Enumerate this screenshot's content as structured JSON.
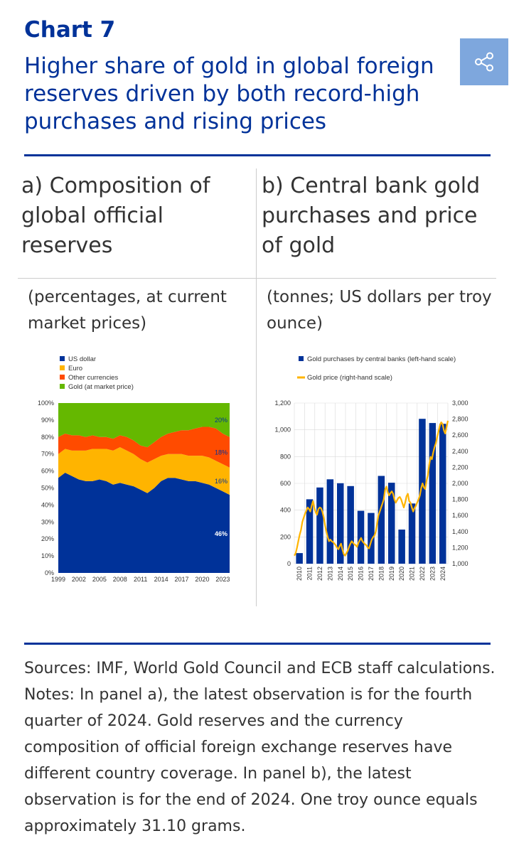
{
  "header": {
    "chart_number": "Chart 7",
    "title": "Higher share of gold in global foreign reserves driven by both record-high purchases and rising prices"
  },
  "share_icon": "share-icon",
  "panels": {
    "a": {
      "title": "a) Composition of global official reserves",
      "units": "(percentages, at current market prices)"
    },
    "b": {
      "title": "b) Central bank gold purchases and price of gold",
      "units": "(tonnes; US dollars per troy ounce)"
    }
  },
  "notes": {
    "sources": "Sources: IMF, World Gold Council and ECB staff calculations.",
    "notes": "Notes: In panel a), the latest observation is for the fourth quarter of 2024. Gold reserves and the currency composition of official foreign exchange reserves have different country coverage. In panel b), the latest observation is for the end of 2024. One troy ounce equals approximately 31.10 grams."
  },
  "colors": {
    "brand": "#003299",
    "usd": "#003299",
    "euro": "#ffb400",
    "other": "#ff4b00",
    "gold": "#65b800",
    "gold_price": "#ffb400",
    "share_btn": "#7ea7dd"
  },
  "chart_data": [
    {
      "id": "a",
      "type": "area",
      "stacked": true,
      "x": [
        1999,
        2000,
        2001,
        2002,
        2003,
        2004,
        2005,
        2006,
        2007,
        2008,
        2009,
        2010,
        2011,
        2012,
        2013,
        2014,
        2015,
        2016,
        2017,
        2018,
        2019,
        2020,
        2021,
        2022,
        2023,
        2024
      ],
      "series": [
        {
          "name": "US dollar",
          "values": [
            56,
            59,
            57,
            55,
            54,
            54,
            55,
            54,
            52,
            53,
            52,
            51,
            49,
            47,
            50,
            54,
            56,
            56,
            55,
            54,
            54,
            53,
            52,
            50,
            48,
            46
          ]
        },
        {
          "name": "Euro",
          "values": [
            14,
            14,
            15,
            17,
            18,
            19,
            18,
            19,
            20,
            21,
            20,
            19,
            18,
            18,
            17,
            15,
            14,
            14,
            15,
            15,
            15,
            16,
            16,
            16,
            16,
            16
          ]
        },
        {
          "name": "Other currencies",
          "values": [
            10,
            9,
            9,
            9,
            8,
            8,
            7,
            7,
            7,
            7,
            8,
            8,
            8,
            9,
            10,
            11,
            12,
            13,
            14,
            15,
            16,
            17,
            18,
            19,
            18,
            18
          ]
        },
        {
          "name": "Gold (at market price)",
          "values": [
            20,
            18,
            19,
            19,
            20,
            19,
            20,
            20,
            21,
            19,
            20,
            22,
            25,
            26,
            23,
            20,
            18,
            17,
            16,
            16,
            15,
            14,
            14,
            15,
            18,
            20
          ]
        }
      ],
      "end_labels": [
        "46%",
        "16%",
        "18%",
        "20%"
      ],
      "xticks": [
        "1999",
        "2002",
        "2005",
        "2008",
        "2011",
        "2014",
        "2017",
        "2020",
        "2023"
      ],
      "xtick_values": [
        1999,
        2002,
        2005,
        2008,
        2011,
        2014,
        2017,
        2020,
        2023
      ],
      "yticks": [
        "0%",
        "10%",
        "20%",
        "30%",
        "40%",
        "50%",
        "60%",
        "70%",
        "80%",
        "90%",
        "100%"
      ],
      "ylim": [
        0,
        100
      ]
    },
    {
      "id": "b",
      "type": "bar",
      "categories": [
        "2010",
        "2011",
        "2012",
        "2013",
        "2014",
        "2015",
        "2016",
        "2017",
        "2018",
        "2019",
        "2020",
        "2021",
        "2022",
        "2023",
        "2024"
      ],
      "series": [
        {
          "name": "Gold purchases by central banks (left-hand scale)",
          "values": [
            79,
            481,
            569,
            630,
            601,
            580,
            395,
            379,
            656,
            605,
            255,
            450,
            1082,
            1051,
            1045
          ]
        }
      ],
      "line_series": {
        "name": "Gold price (right-hand scale)",
        "values": [
          1100,
          1130,
          1200,
          1280,
          1360,
          1420,
          1520,
          1570,
          1620,
          1660,
          1700,
          1680,
          1650,
          1720,
          1780,
          1690,
          1640,
          1610,
          1680,
          1700,
          1690,
          1650,
          1580,
          1480,
          1400,
          1330,
          1280,
          1300,
          1280,
          1270,
          1250,
          1230,
          1200,
          1180,
          1220,
          1250,
          1180,
          1120,
          1100,
          1130,
          1160,
          1210,
          1250,
          1280,
          1260,
          1240,
          1230,
          1210,
          1260,
          1290,
          1320,
          1280,
          1260,
          1240,
          1230,
          1200,
          1190,
          1250,
          1300,
          1330,
          1350,
          1400,
          1500,
          1600,
          1650,
          1700,
          1750,
          1800,
          1920,
          1960,
          1890,
          1850,
          1880,
          1900,
          1870,
          1800,
          1760,
          1790,
          1820,
          1830,
          1800,
          1750,
          1700,
          1760,
          1840,
          1870,
          1780,
          1760,
          1700,
          1650,
          1690,
          1720,
          1760,
          1800,
          1850,
          1940,
          2000,
          1950,
          1930,
          2030,
          2100,
          2230,
          2330,
          2300,
          2380,
          2450,
          2500,
          2580,
          2650,
          2720,
          2760,
          2740,
          2660,
          2620,
          2700,
          2780
        ],
        "x_range": [
          2009.5,
          2024.5
        ]
      },
      "ylim_left": [
        0,
        1200
      ],
      "ylim_right": [
        1000,
        3000
      ],
      "yticks_left": [
        "0",
        "200",
        "400",
        "600",
        "800",
        "1,000",
        "1,200"
      ],
      "yticks_right": [
        "1,000",
        "1,200",
        "1,400",
        "1,600",
        "1,800",
        "2,000",
        "2,200",
        "2,400",
        "2,600",
        "2,800",
        "3,000"
      ]
    }
  ]
}
